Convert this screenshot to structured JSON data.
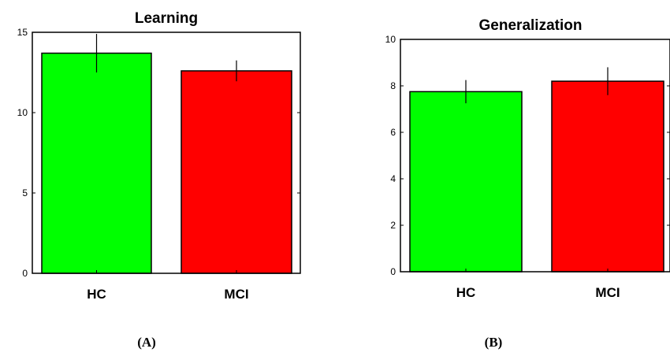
{
  "chart_data": [
    {
      "type": "bar",
      "title": "Learning",
      "panel_label": "(A)",
      "categories": [
        "HC",
        "MCI"
      ],
      "values": [
        13.7,
        12.6
      ],
      "error": [
        1.2,
        0.65
      ],
      "colors": [
        "#00ff00",
        "#ff0000"
      ],
      "ylim": [
        0,
        15
      ],
      "yticks": [
        0,
        5,
        10,
        15
      ]
    },
    {
      "type": "bar",
      "title": "Generalization",
      "panel_label": "(B)",
      "categories": [
        "HC",
        "MCI"
      ],
      "values": [
        7.75,
        8.2
      ],
      "error": [
        0.5,
        0.6
      ],
      "colors": [
        "#00ff00",
        "#ff0000"
      ],
      "ylim": [
        0,
        10
      ],
      "yticks": [
        0,
        2,
        4,
        6,
        8,
        10
      ]
    }
  ]
}
